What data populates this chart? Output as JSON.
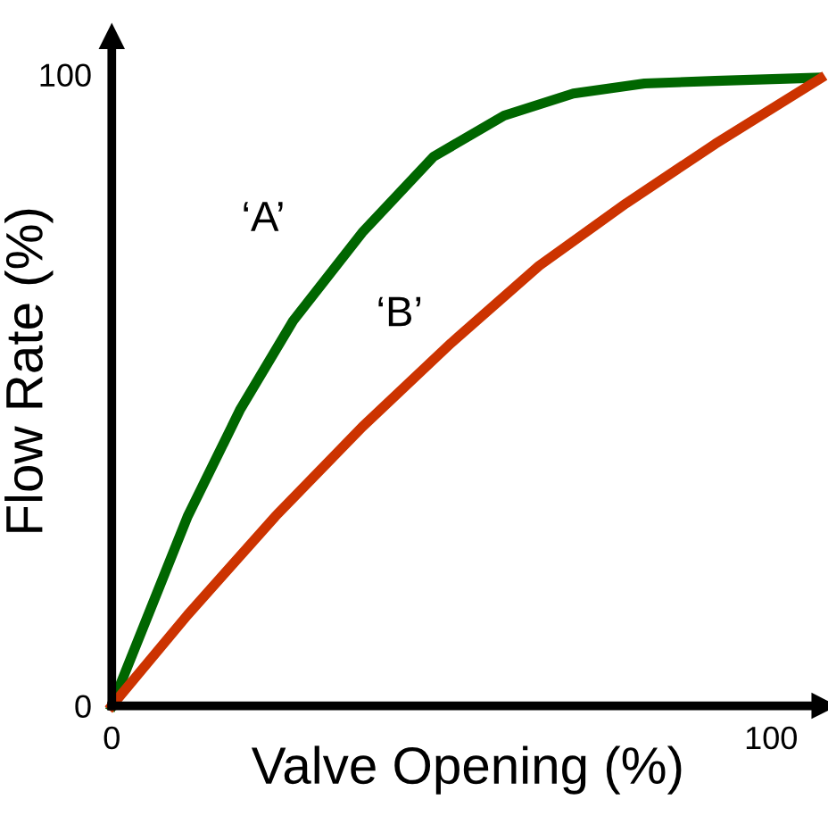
{
  "chart_data": {
    "type": "line",
    "xlabel": "Valve Opening (%)",
    "ylabel": "Flow Rate (%)",
    "xlim": [
      0,
      108
    ],
    "ylim": [
      0,
      106
    ],
    "xticks": [
      0,
      100
    ],
    "yticks": [
      0,
      100
    ],
    "grid": false,
    "legend": false,
    "marker": "none",
    "line_style": "solid",
    "series": [
      {
        "name": "‘A’",
        "color": "#006600",
        "x": [
          0,
          6.1,
          11.5,
          19.5,
          27.5,
          38,
          48.8,
          59.5,
          70,
          80.8,
          91.5,
          107
        ],
        "values": [
          0,
          15.9,
          30,
          47,
          61,
          75,
          87,
          93.5,
          97,
          98.6,
          99,
          99.5
        ]
      },
      {
        "name": "‘B’",
        "color": "#cc3300",
        "x": [
          0,
          11.5,
          24.8,
          38,
          51.5,
          64.8,
          78,
          91.5,
          107.5
        ],
        "values": [
          0,
          14.4,
          30,
          44.2,
          57.5,
          69.7,
          79.6,
          89,
          99.4
        ]
      }
    ]
  }
}
